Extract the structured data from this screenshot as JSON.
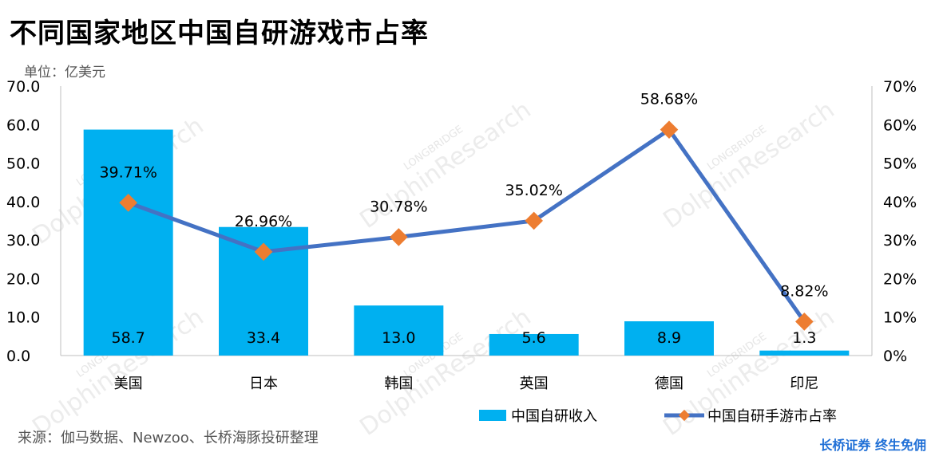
{
  "title": "不同国家地区中国自研游戏市占率",
  "unit_label": "单位：亿美元",
  "source": "来源：伽马数据、Newzoo、长桥海豚投研整理",
  "brand": "长桥证券 终生免佣",
  "watermark": {
    "small": "LONGBRIDGE",
    "large": "DolphinResearch"
  },
  "colors": {
    "bar": "#00b0f0",
    "line": "#4472c4",
    "marker": "#ed7d31",
    "axis": "#bfbfbf"
  },
  "chart_data": {
    "type": "bar",
    "categories": [
      "美国",
      "日本",
      "韩国",
      "英国",
      "德国",
      "印尼"
    ],
    "series": [
      {
        "name": "中国自研收入",
        "type": "bar",
        "axis": "left",
        "values": [
          58.7,
          33.4,
          13.0,
          5.6,
          8.9,
          1.3
        ],
        "labels": [
          "58.7",
          "33.4",
          "13.0",
          "5.6",
          "8.9",
          "1.3"
        ]
      },
      {
        "name": "中国自研手游市占率",
        "type": "line",
        "axis": "right",
        "values": [
          39.71,
          26.96,
          30.78,
          35.02,
          58.68,
          8.82
        ],
        "labels": [
          "39.71%",
          "26.96%",
          "30.78%",
          "35.02%",
          "58.68%",
          "8.82%"
        ]
      }
    ],
    "y_left": {
      "min": 0,
      "max": 70,
      "ticks": [
        0,
        10,
        20,
        30,
        40,
        50,
        60,
        70
      ],
      "tick_labels": [
        "0.0",
        "10.0",
        "20.0",
        "30.0",
        "40.0",
        "50.0",
        "60.0",
        "70.0"
      ]
    },
    "y_right": {
      "min": 0,
      "max": 70,
      "ticks": [
        0,
        10,
        20,
        30,
        40,
        50,
        60,
        70
      ],
      "tick_labels": [
        "0%",
        "10%",
        "20%",
        "30%",
        "40%",
        "50%",
        "60%",
        "70%"
      ]
    },
    "grid": false,
    "legend": "bottom-right"
  }
}
